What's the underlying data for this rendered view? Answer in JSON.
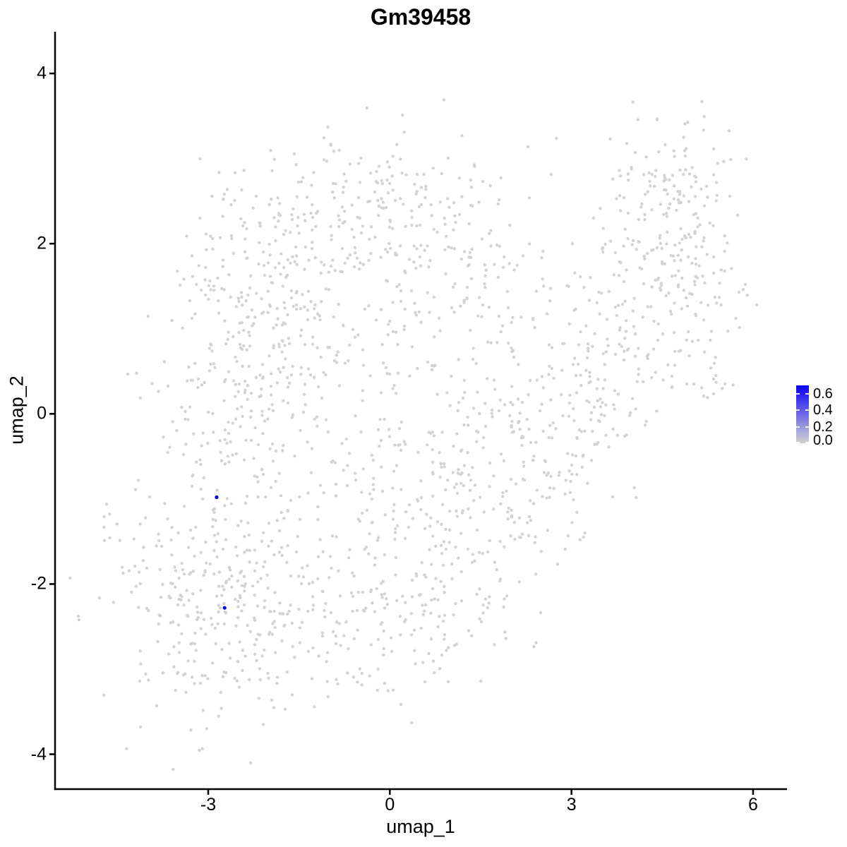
{
  "figure": {
    "background": "#ffffff"
  },
  "chart_data": {
    "type": "scatter",
    "title": "Gm39458",
    "xlabel": "umap_1",
    "ylabel": "umap_2",
    "xlim": [
      -5.53,
      6.56
    ],
    "ylim": [
      -4.41,
      4.49
    ],
    "x_tick_values": [
      -3,
      0,
      3,
      6
    ],
    "x_tick_labels": [
      "-3",
      "0",
      "3",
      "6"
    ],
    "y_tick_values": [
      4,
      2,
      0,
      -2,
      -4
    ],
    "y_tick_labels": [
      "4",
      "2",
      "0",
      "-2",
      "-4"
    ],
    "grid": false,
    "legend_position": "right",
    "point_style": {
      "low_color": "#d3d3d3",
      "high_color": "#0000ee",
      "radius_px": 2.2,
      "highlight_radius_px": 2.6
    },
    "colorbar": {
      "min": 0.0,
      "max": 0.7,
      "tick_values": [
        0.6,
        0.4,
        0.2,
        0.0
      ],
      "tick_labels": [
        "0.6",
        "0.4",
        "0.2",
        "0.0"
      ],
      "low_color": "#d3d3d3",
      "high_color": "#0b00fa"
    },
    "expressing_cells": [
      {
        "x": -2.86,
        "y": -0.98,
        "value": 0.65
      },
      {
        "x": -2.73,
        "y": -2.28,
        "value": 0.62
      }
    ],
    "background_cells": {
      "seed": 39458,
      "total": 2021,
      "value": 0.0,
      "clusters": [
        {
          "x": -2.7,
          "y": -2.2,
          "sdx": 0.95,
          "sdy": 0.75,
          "n": 330
        },
        {
          "x": -2.5,
          "y": 0.5,
          "sdx": 0.75,
          "sdy": 0.95,
          "n": 260
        },
        {
          "x": -0.5,
          "y": 2.35,
          "sdx": 1.05,
          "sdy": 0.5,
          "n": 220
        },
        {
          "x": 0.4,
          "y": -0.4,
          "sdx": 1.15,
          "sdy": 1.05,
          "n": 300
        },
        {
          "x": -0.15,
          "y": -2.45,
          "sdx": 0.9,
          "sdy": 0.5,
          "n": 130
        },
        {
          "x": 2.7,
          "y": -0.5,
          "sdx": 0.7,
          "sdy": 0.6,
          "n": 80
        },
        {
          "x": 3.2,
          "y": 0.3,
          "sdx": 0.55,
          "sdy": 0.45,
          "n": 70
        },
        {
          "x": 3.8,
          "y": 1.3,
          "sdx": 0.6,
          "sdy": 0.8,
          "n": 110
        },
        {
          "x": 4.75,
          "y": 2.0,
          "sdx": 0.5,
          "sdy": 0.8,
          "n": 150
        },
        {
          "x": 4.6,
          "y": 2.75,
          "sdx": 0.45,
          "sdy": 0.22,
          "n": 40
        },
        {
          "x": 5.3,
          "y": 1.2,
          "sdx": 0.3,
          "sdy": 0.7,
          "n": 45
        },
        {
          "x": -4.62,
          "y": -1.25,
          "sdx": 0.1,
          "sdy": 0.16,
          "n": 6
        },
        {
          "x": -1.5,
          "y": 1.4,
          "sdx": 0.6,
          "sdy": 0.8,
          "n": 100
        },
        {
          "x": 1.3,
          "y": 1.6,
          "sdx": 0.8,
          "sdy": 0.6,
          "n": 100
        },
        {
          "x": 1.5,
          "y": -1.6,
          "sdx": 0.7,
          "sdy": 0.65,
          "n": 80
        }
      ]
    }
  }
}
